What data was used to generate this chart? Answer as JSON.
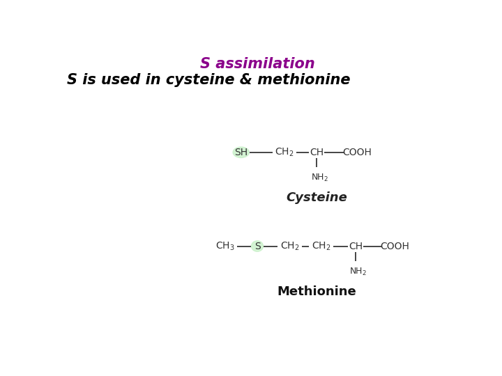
{
  "title": "S assimilation",
  "title_color": "#8B008B",
  "subtitle": "S is used in cysteine & methionine",
  "subtitle_color": "#000000",
  "bg_color": "#ffffff",
  "title_fontsize": 15,
  "subtitle_fontsize": 15,
  "cysteine_label": "Cysteine",
  "methionine_label": "Methionine",
  "highlight_color": "#c8f0c8",
  "chem_fontsize": 10,
  "sub_fontsize": 8,
  "bond_color": "#444444",
  "bond_lw": 1.4
}
